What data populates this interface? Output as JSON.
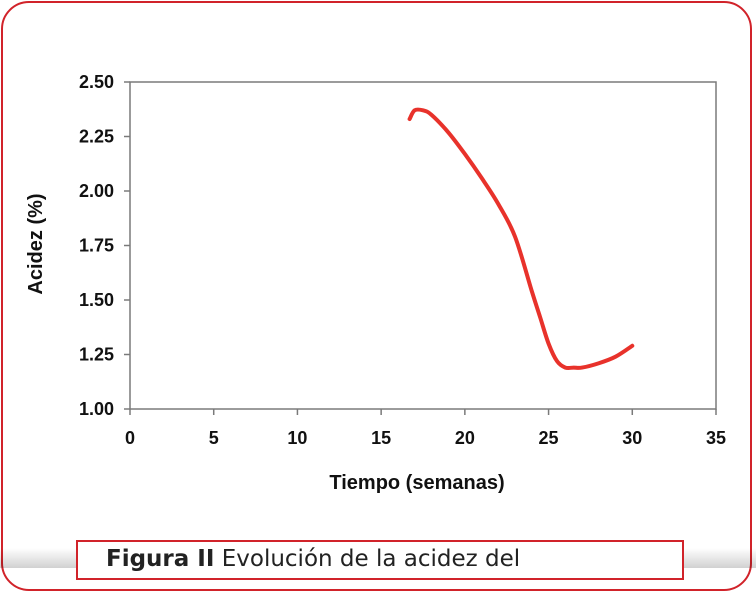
{
  "chart_data": {
    "type": "line",
    "title": "",
    "xlabel": "Tiempo (semanas)",
    "ylabel": "Acidez (%)",
    "xlim": [
      0,
      35
    ],
    "ylim": [
      1.0,
      2.5
    ],
    "x_ticks": [
      0,
      5,
      10,
      15,
      20,
      25,
      30,
      35
    ],
    "x_tick_labels": [
      "0",
      "5",
      "10",
      "15",
      "20",
      "25",
      "30",
      "35"
    ],
    "y_ticks": [
      1.0,
      1.25,
      1.5,
      1.75,
      2.0,
      2.25,
      2.5
    ],
    "y_tick_labels": [
      "1.00",
      "1.25",
      "1.50",
      "1.75",
      "2.00",
      "2.25",
      "2.50"
    ],
    "grid": false,
    "legend": "none",
    "series": [
      {
        "color": "#e8322b",
        "x": [
          16.7,
          17.0,
          17.5,
          18.0,
          19.0,
          20.0,
          21.0,
          22.0,
          23.0,
          24.0,
          24.5,
          25.0,
          25.5,
          26.0,
          26.5,
          27.0,
          28.0,
          29.0,
          30.0
        ],
        "y": [
          2.33,
          2.37,
          2.37,
          2.35,
          2.27,
          2.17,
          2.06,
          1.94,
          1.79,
          1.54,
          1.42,
          1.3,
          1.22,
          1.19,
          1.19,
          1.19,
          1.21,
          1.24,
          1.29
        ]
      }
    ]
  },
  "caption": {
    "bold": "Figura II",
    "text": " Evolución de la acidez del"
  }
}
